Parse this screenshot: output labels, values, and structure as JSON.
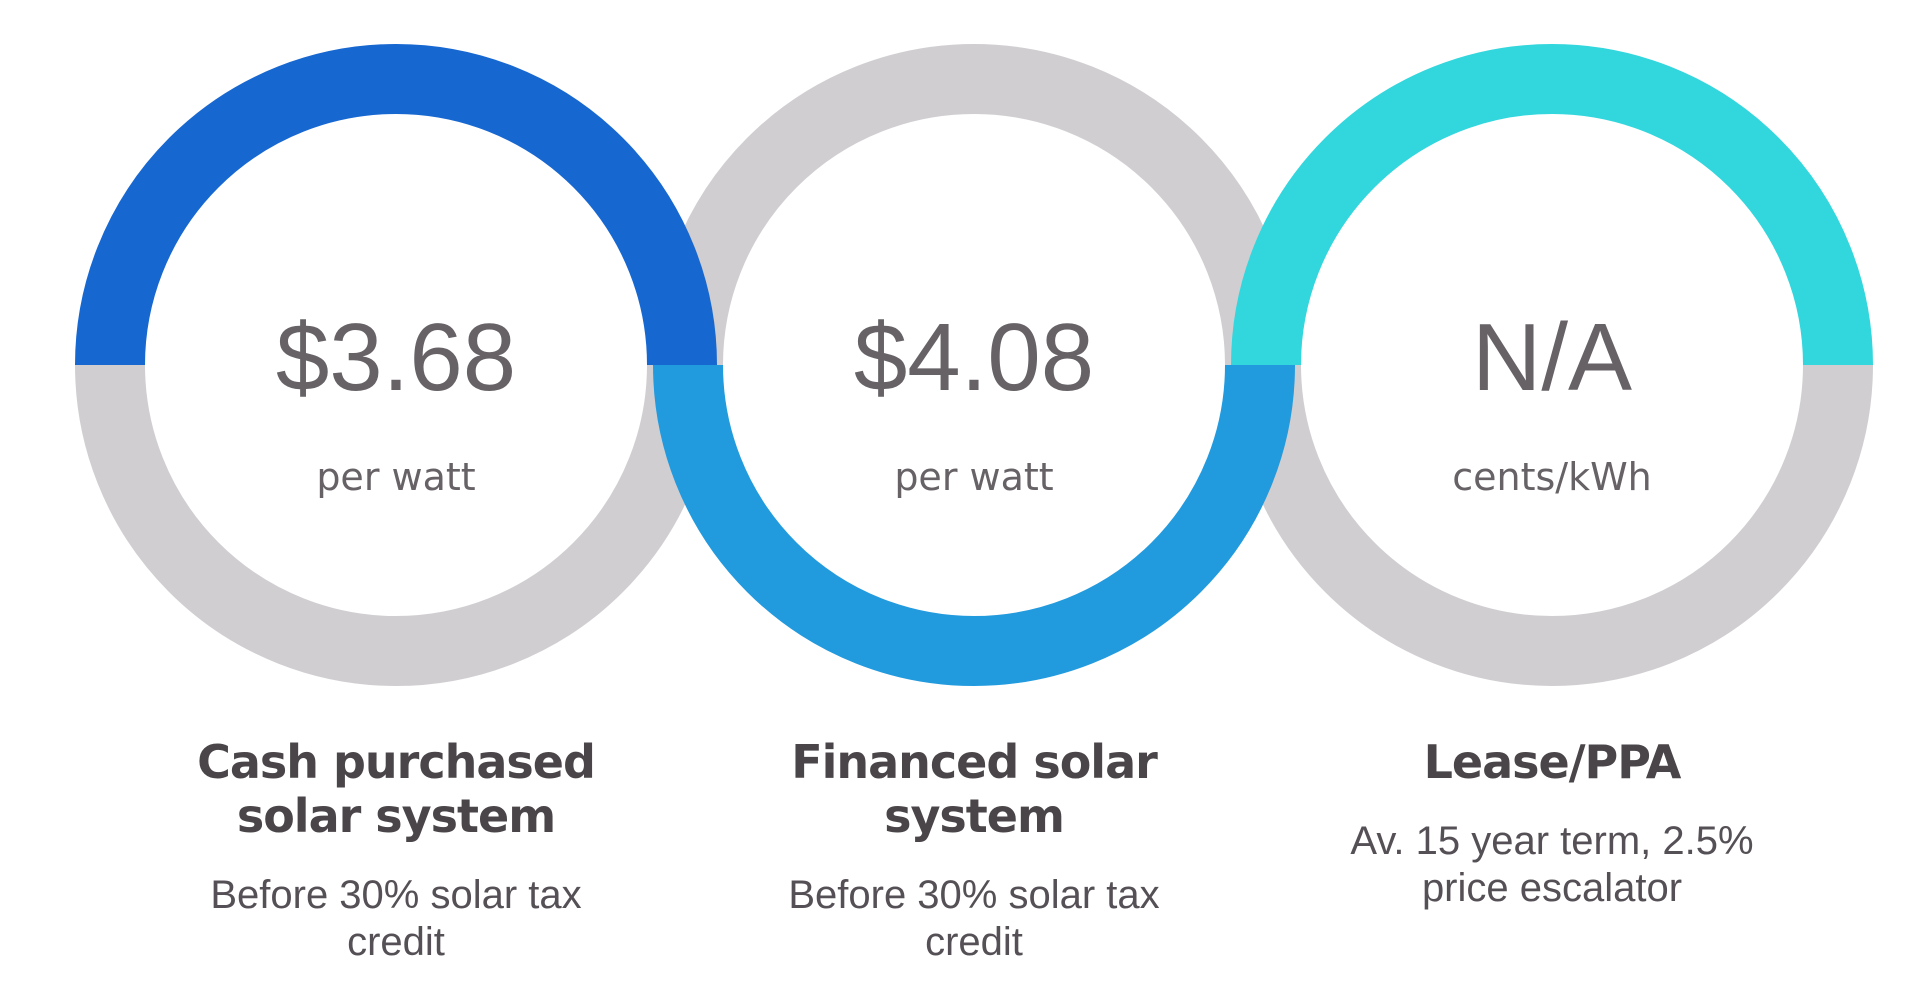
{
  "cards": [
    {
      "value": "$3.68",
      "unit": "per watt",
      "title": "Cash purchased solar system",
      "subtitle": "Before 30% solar tax credit"
    },
    {
      "value": "$4.08",
      "unit": "per watt",
      "title": "Financed solar system",
      "subtitle": "Before 30% solar tax credit"
    },
    {
      "value": "N/A",
      "unit": "cents/kWh",
      "title": "Lease/PPA",
      "subtitle": "Av. 15 year term, 2.5% price escalator"
    }
  ]
}
